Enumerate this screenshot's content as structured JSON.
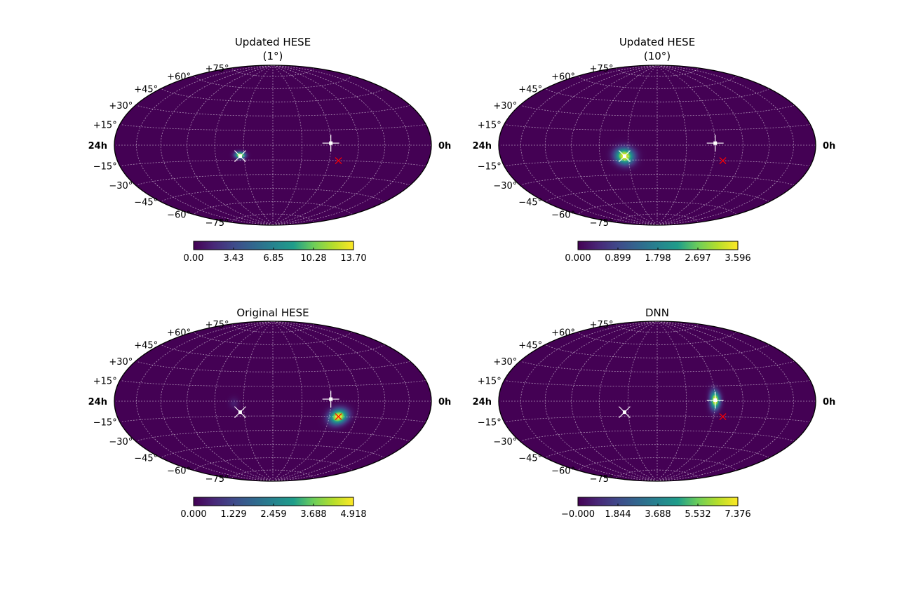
{
  "figure": {
    "colormap": [
      "#440154",
      "#482777",
      "#3f4a8a",
      "#31678e",
      "#26838f",
      "#1f9d8a",
      "#6cce5a",
      "#b6de2b",
      "#fee825"
    ],
    "background_color": "#440154",
    "grid_color": "#ffffff",
    "true_direction_marker_color": "#ff0000"
  },
  "chart_data": [
    {
      "type": "heatmap",
      "projection": "hammer",
      "title": "Updated HESE",
      "subtitle": "(1°)",
      "ra_labels": {
        "left": "24h",
        "right": "0h"
      },
      "dec_labels": [
        "+75°",
        "+60°",
        "+45°",
        "+30°",
        "+15°",
        "−15°",
        "−30°",
        "−45°",
        "−60°",
        "−75°"
      ],
      "colorbar": {
        "min": 0.0,
        "max": 13.7,
        "ticks": [
          "0.00",
          "3.43",
          "6.85",
          "10.28",
          "13.70"
        ]
      },
      "hotspots": [
        {
          "ra_deg": 34,
          "dec_deg": -10,
          "sigma_lon": 3.5,
          "sigma_lat": 2.2,
          "peak": 1.0
        }
      ],
      "markers": [
        {
          "kind": "plus",
          "ra_deg": 300,
          "dec_deg": 2,
          "color": "#ffffff"
        },
        {
          "kind": "x",
          "ra_deg": 34,
          "dec_deg": -11,
          "color": "#ffffff"
        },
        {
          "kind": "x",
          "ra_deg": 290,
          "dec_deg": -15,
          "color": "#ff0000"
        }
      ]
    },
    {
      "type": "heatmap",
      "projection": "hammer",
      "title": "Updated HESE",
      "subtitle": "(10°)",
      "ra_labels": {
        "left": "24h",
        "right": "0h"
      },
      "dec_labels": [
        "+75°",
        "+60°",
        "+45°",
        "+30°",
        "+15°",
        "−15°",
        "−30°",
        "−45°",
        "−60°",
        "−75°"
      ],
      "colorbar": {
        "min": 0.0,
        "max": 3.596,
        "ticks": [
          "0.000",
          "0.899",
          "1.798",
          "2.697",
          "3.596"
        ]
      },
      "hotspots": [
        {
          "ra_deg": 34,
          "dec_deg": -11,
          "sigma_lon": 6.5,
          "sigma_lat": 5.5,
          "peak": 1.0
        }
      ],
      "markers": [
        {
          "kind": "plus",
          "ra_deg": 300,
          "dec_deg": 2,
          "color": "#ffffff"
        },
        {
          "kind": "x",
          "ra_deg": 34,
          "dec_deg": -11,
          "color": "#ffffff"
        },
        {
          "kind": "x",
          "ra_deg": 290,
          "dec_deg": -15,
          "color": "#ff0000"
        }
      ]
    },
    {
      "type": "heatmap",
      "projection": "hammer",
      "title": "Original HESE",
      "subtitle": "",
      "ra_labels": {
        "left": "24h",
        "right": "0h"
      },
      "dec_labels": [
        "+75°",
        "+60°",
        "+45°",
        "+30°",
        "+15°",
        "−15°",
        "−30°",
        "−45°",
        "−60°",
        "−75°"
      ],
      "colorbar": {
        "min": 0.0,
        "max": 4.918,
        "ticks": [
          "0.000",
          "1.229",
          "2.459",
          "3.688",
          "4.918"
        ]
      },
      "hotspots": [
        {
          "ra_deg": 290,
          "dec_deg": -15,
          "sigma_lon": 6.5,
          "sigma_lat": 5,
          "peak": 1.0
        },
        {
          "ra_deg": 40,
          "dec_deg": -2,
          "sigma_lon": 3.5,
          "sigma_lat": 4,
          "peak": 0.09
        }
      ],
      "markers": [
        {
          "kind": "plus",
          "ra_deg": 300,
          "dec_deg": 2,
          "color": "#ffffff"
        },
        {
          "kind": "x",
          "ra_deg": 34,
          "dec_deg": -11,
          "color": "#ffffff"
        },
        {
          "kind": "x",
          "ra_deg": 290,
          "dec_deg": -15,
          "color": "#ff0000"
        }
      ]
    },
    {
      "type": "heatmap",
      "projection": "hammer",
      "title": "DNN",
      "subtitle": "",
      "ra_labels": {
        "left": "24h",
        "right": "0h"
      },
      "dec_labels": [
        "+75°",
        "+60°",
        "+45°",
        "+30°",
        "+15°",
        "−15°",
        "−30°",
        "−45°",
        "−60°",
        "−75°"
      ],
      "colorbar": {
        "min": 0.0,
        "max": 7.376,
        "ticks": [
          "−0.000",
          "1.844",
          "3.688",
          "5.532",
          "7.376"
        ]
      },
      "hotspots": [
        {
          "ra_deg": 300,
          "dec_deg": 1,
          "sigma_lon": 3.5,
          "sigma_lat": 6,
          "peak": 1.0
        }
      ],
      "markers": [
        {
          "kind": "plus",
          "ra_deg": 300,
          "dec_deg": 1,
          "color": "#ffffff"
        },
        {
          "kind": "x",
          "ra_deg": 34,
          "dec_deg": -11,
          "color": "#ffffff"
        },
        {
          "kind": "x",
          "ra_deg": 290,
          "dec_deg": -15,
          "color": "#ff0000"
        }
      ]
    }
  ]
}
